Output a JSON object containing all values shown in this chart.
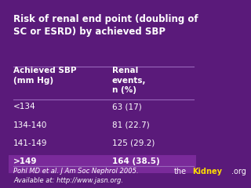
{
  "title": "Risk of renal end point (doubling of\nSC or ESRD) by achieved SBP",
  "col1_header": "Achieved SBP\n(mm Hg)",
  "col2_header": "Renal\nevents,\nn (%)",
  "rows": [
    [
      "<134",
      "63 (17)"
    ],
    [
      "134-140",
      "81 (22.7)"
    ],
    [
      "141-149",
      "125 (29.2)"
    ],
    [
      ">149",
      "164 (38.5)"
    ]
  ],
  "highlight_row": 3,
  "bg_color": "#5a1a7a",
  "text_color": "#ffffff",
  "highlight_color": "#7a2a9a",
  "line_color": "#9966bb",
  "title_fontsize": 8.5,
  "header_fontsize": 7.5,
  "data_fontsize": 7.5,
  "footer_text": "Pohl MD et al. J Am Soc Nephrol 2005.\nAvailable at: http://www.jasn.org.",
  "footer_fontsize": 6.0,
  "logo_text_the": "the",
  "logo_text_kidney": "Kidney",
  "logo_text_org": ".org",
  "logo_color_the": "#ffffff",
  "logo_color_kidney": "#ffdd00",
  "logo_color_org": "#ffffff",
  "logo_fontsize": 7
}
